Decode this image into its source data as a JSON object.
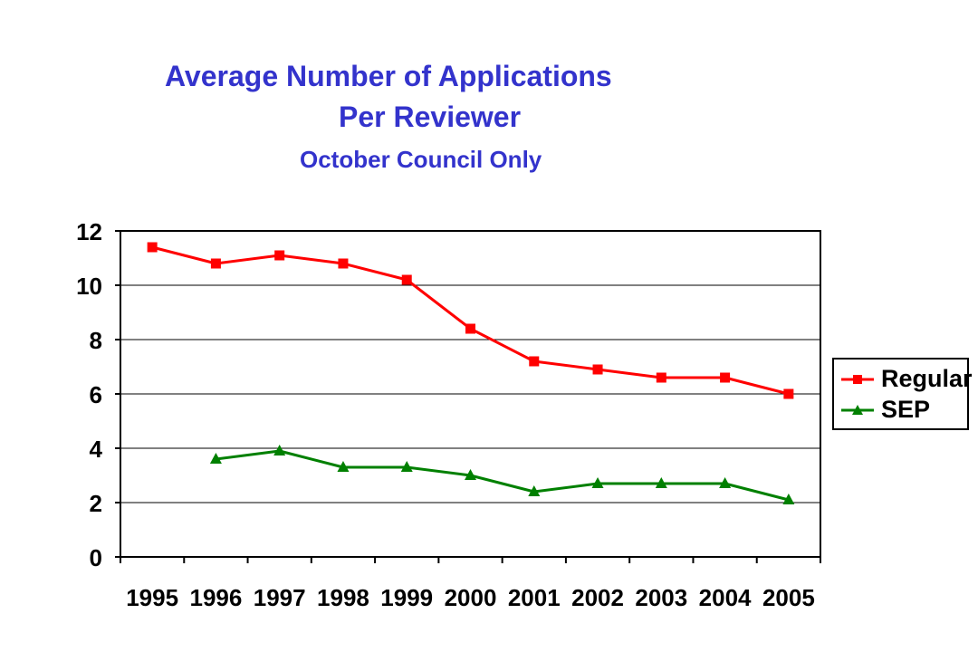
{
  "title": "Average Number of Applications",
  "title_line2": "Per Reviewer",
  "subtitle": "October Council Only",
  "colors": {
    "title": "#3333CC",
    "regular": "#FF0000",
    "sep": "#008000",
    "grid": "#000000"
  },
  "chart_data": {
    "type": "line",
    "title": "Average Number of Applications Per Reviewer",
    "subtitle": "October Council Only",
    "categories": [
      "1995",
      "1996",
      "1997",
      "1998",
      "1999",
      "2000",
      "2001",
      "2002",
      "2003",
      "2004",
      "2005"
    ],
    "ylim": [
      0,
      12
    ],
    "yticks": [
      0,
      2,
      4,
      6,
      8,
      10,
      12
    ],
    "grid": true,
    "legend": "right",
    "series": [
      {
        "name": "Regular",
        "marker": "square",
        "color": "#FF0000",
        "values": [
          11.4,
          10.8,
          11.1,
          10.8,
          10.2,
          8.4,
          7.2,
          6.9,
          6.6,
          6.6,
          6.0
        ]
      },
      {
        "name": "SEP",
        "marker": "triangle",
        "color": "#008000",
        "values": [
          null,
          3.6,
          3.9,
          3.3,
          3.3,
          3.0,
          2.4,
          2.7,
          2.7,
          2.7,
          2.1
        ]
      }
    ]
  }
}
